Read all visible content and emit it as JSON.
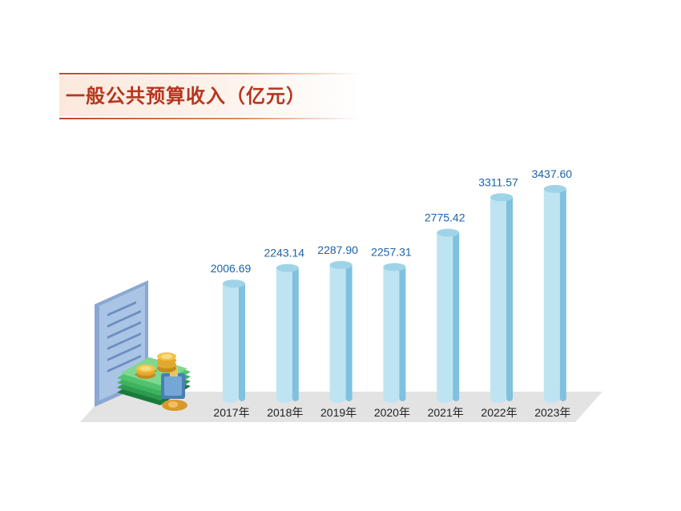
{
  "chart_data": {
    "type": "bar",
    "title": "一般公共预算收入（亿元）",
    "categories": [
      "2017年",
      "2018年",
      "2019年",
      "2020年",
      "2021年",
      "2022年",
      "2023年"
    ],
    "values": [
      2006.69,
      2243.14,
      2287.9,
      2257.31,
      2775.42,
      3311.57,
      3437.6
    ],
    "value_labels": [
      "2006.69",
      "2243.14",
      "2287.90",
      "2257.31",
      "2775.42",
      "3311.57",
      "3437.60"
    ],
    "xlabel": "",
    "ylabel": "",
    "grid": false,
    "legend": "none",
    "colors": {
      "bar_front": "#bfe4f1",
      "bar_side": "#7fc1de",
      "bar_top": "#9fd3e8",
      "value_text": "#1c63a8",
      "title_text": "#b7361f",
      "floor": "#e3e3e3"
    }
  },
  "decoration": {
    "icon": "money-and-document-icon"
  }
}
